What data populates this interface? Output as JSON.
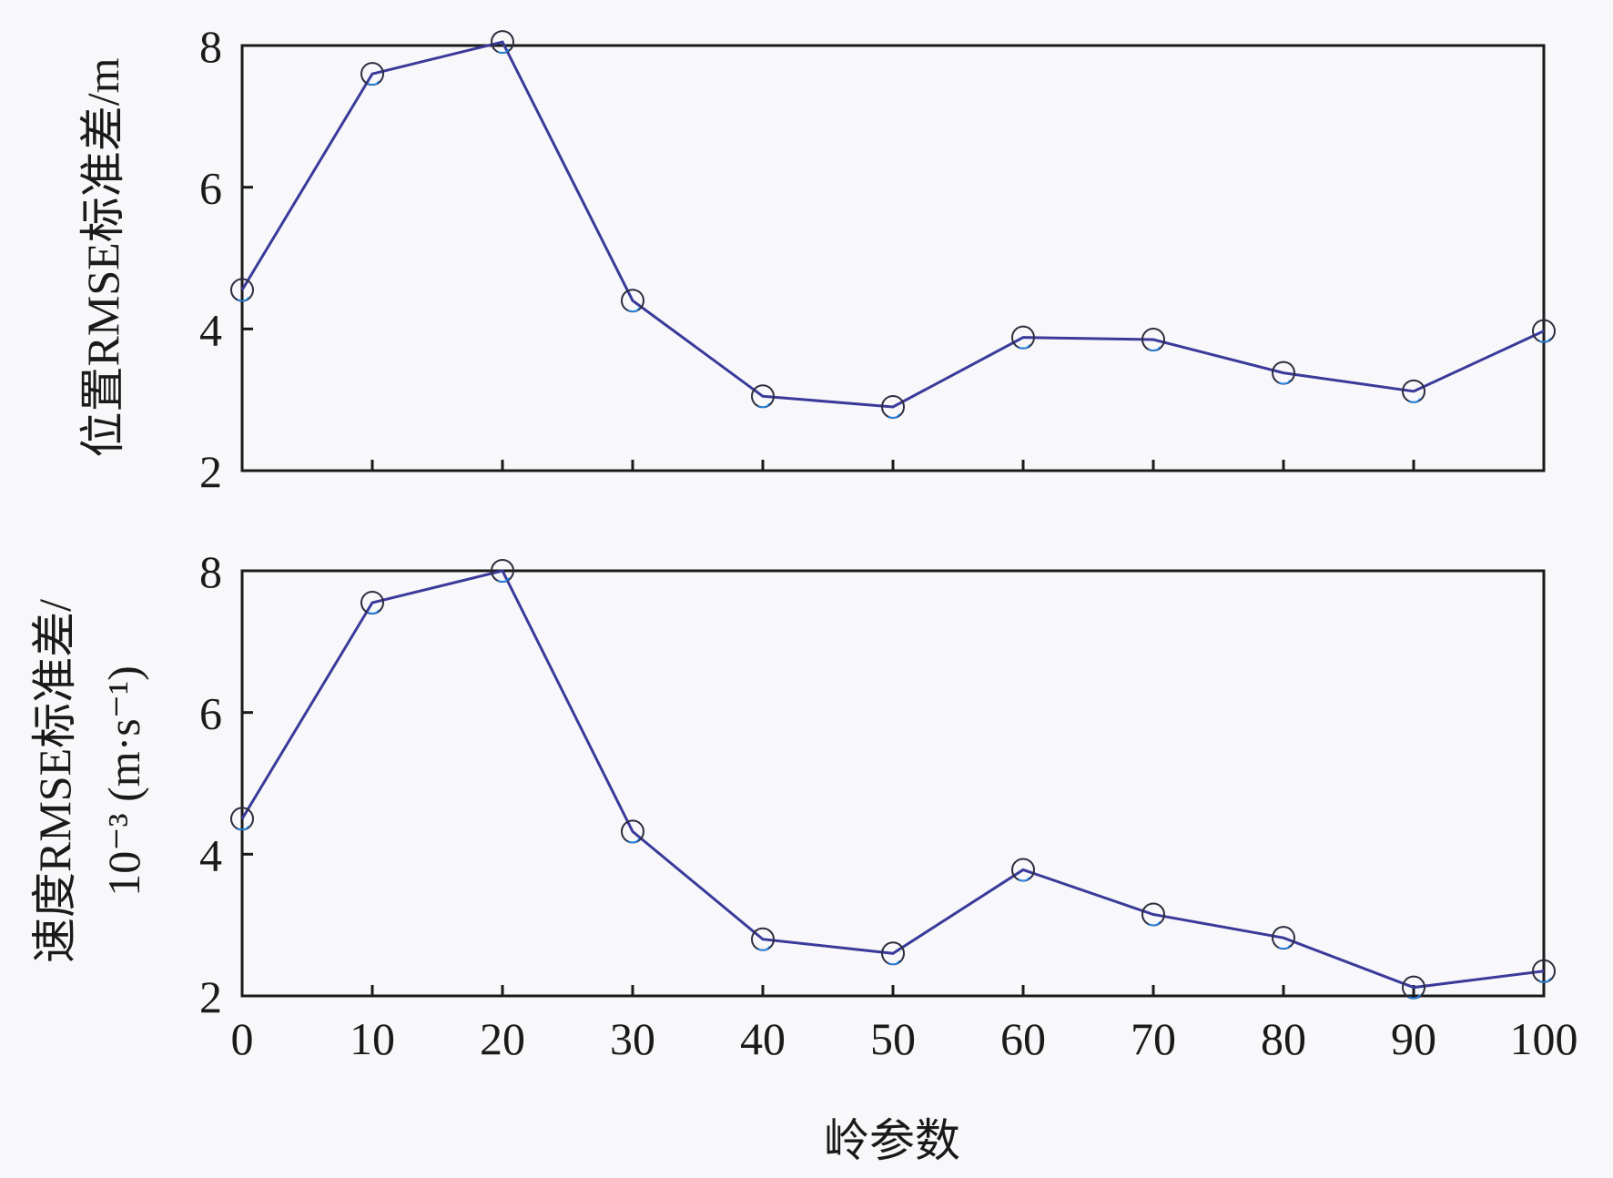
{
  "chart_data": [
    {
      "type": "line",
      "ylabel": "位置RMSE标准差/m",
      "x": [
        0,
        10,
        20,
        30,
        40,
        50,
        60,
        70,
        80,
        90,
        100
      ],
      "series": [
        {
          "values": [
            4.55,
            7.6,
            8.05,
            4.4,
            3.05,
            2.9,
            3.88,
            3.85,
            3.38,
            3.12,
            3.97
          ]
        }
      ],
      "xlim": [
        0,
        100
      ],
      "ylim": [
        2,
        8
      ],
      "xticks": [
        0,
        10,
        20,
        30,
        40,
        50,
        60,
        70,
        80,
        90,
        100
      ],
      "yticks": [
        2,
        4,
        6,
        8
      ],
      "grid": false,
      "legend": "none",
      "colors": {
        "line": "#3a3a9a",
        "marker": "#2c2c3e",
        "marker_fill_accent": "#1e90ff"
      }
    },
    {
      "type": "line",
      "xlabel": "岭参数",
      "ylabel_line1": "速度RMSE标准差/",
      "ylabel_line2": "10⁻³ (m·s⁻¹)",
      "x": [
        0,
        10,
        20,
        30,
        40,
        50,
        60,
        70,
        80,
        90,
        100
      ],
      "series": [
        {
          "values": [
            4.5,
            7.55,
            8.0,
            4.32,
            2.8,
            2.6,
            3.78,
            3.15,
            2.82,
            2.12,
            2.35
          ]
        }
      ],
      "xlim": [
        0,
        100
      ],
      "ylim": [
        2,
        8
      ],
      "xticks": [
        0,
        10,
        20,
        30,
        40,
        50,
        60,
        70,
        80,
        90,
        100
      ],
      "yticks": [
        2,
        4,
        6,
        8
      ],
      "grid": false,
      "legend": "none",
      "colors": {
        "line": "#3a3a9a",
        "marker": "#2c2c3e",
        "marker_fill_accent": "#1e90ff"
      }
    }
  ]
}
